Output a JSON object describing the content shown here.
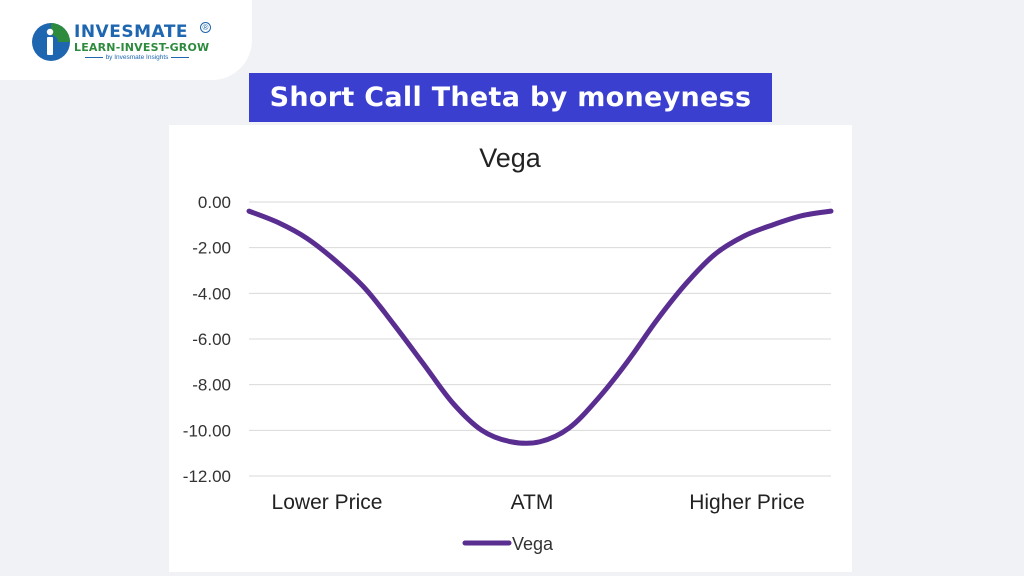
{
  "brand": {
    "name": "INVESMATE",
    "registered": "®",
    "tagline": "LEARN-INVEST-GROW",
    "byline": "by Invesmate Insights",
    "colors": {
      "primary": "#1e66b0",
      "secondary": "#2e8b3d"
    },
    "icon": "invesmate-logo-icon"
  },
  "banner": {
    "text": "Short Call Theta by moneyness",
    "color": "#3a3fd0"
  },
  "chart_data": {
    "type": "line",
    "title": "Vega",
    "xlabel": "",
    "ylabel": "",
    "categories": [
      "Lower Price",
      "ATM",
      "Higher Price"
    ],
    "ylim": [
      -12,
      0
    ],
    "yticks": [
      0,
      -2,
      -4,
      -6,
      -8,
      -10,
      -12
    ],
    "ytick_labels": [
      "0.00",
      "-2.00",
      "-4.00",
      "-6.00",
      "-8.00",
      "-10.00",
      "-12.00"
    ],
    "grid": true,
    "legend": "bottom",
    "series": [
      {
        "name": "Vega",
        "color": "#5a2d91",
        "x": [
          0,
          0.05,
          0.1,
          0.15,
          0.2,
          0.25,
          0.3,
          0.35,
          0.4,
          0.45,
          0.5,
          0.55,
          0.6,
          0.65,
          0.7,
          0.75,
          0.8,
          0.85,
          0.9,
          0.95,
          1
        ],
        "values": [
          -0.4,
          -0.9,
          -1.6,
          -2.6,
          -3.8,
          -5.4,
          -7.1,
          -8.8,
          -10.0,
          -10.5,
          -10.5,
          -9.9,
          -8.6,
          -7.0,
          -5.2,
          -3.6,
          -2.3,
          -1.5,
          -1.0,
          -0.6,
          -0.4
        ]
      }
    ]
  }
}
